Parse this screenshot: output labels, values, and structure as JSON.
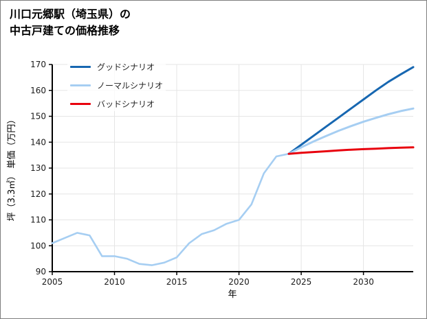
{
  "title": {
    "line1": "川口元郷駅（埼玉県）の",
    "line2": "中古戸建ての価格推移"
  },
  "chart_data": {
    "type": "line",
    "title": "川口元郷駅（埼玉県）の中古戸建ての価格推移",
    "xlabel": "年",
    "ylabel": "坪（3.3㎡） 単価（万円）",
    "xlim": [
      2005,
      2034
    ],
    "ylim": [
      90,
      170
    ],
    "xticks": [
      2005,
      2010,
      2015,
      2020,
      2025,
      2030
    ],
    "yticks": [
      90,
      100,
      110,
      120,
      130,
      140,
      150,
      160,
      170
    ],
    "grid": true,
    "legend_position": "top-left",
    "historical": {
      "color": "#a6cef2",
      "x": [
        2005,
        2006,
        2007,
        2008,
        2009,
        2010,
        2011,
        2012,
        2013,
        2014,
        2015,
        2016,
        2017,
        2018,
        2019,
        2020,
        2021,
        2022,
        2023,
        2024
      ],
      "y": [
        101,
        103,
        105,
        104,
        96,
        96,
        95,
        93,
        92.5,
        93.5,
        95.5,
        101,
        104.5,
        106,
        108.5,
        110,
        116,
        128,
        134.5,
        135.5
      ]
    },
    "series": [
      {
        "name": "グッドシナリオ",
        "color": "#1767b1",
        "x": [
          2024,
          2025,
          2026,
          2027,
          2028,
          2029,
          2030,
          2031,
          2032,
          2033,
          2034
        ],
        "y": [
          135.5,
          139,
          142.5,
          146,
          149.5,
          153,
          156.5,
          160,
          163.3,
          166.2,
          169
        ]
      },
      {
        "name": "ノーマルシナリオ",
        "color": "#a6cef2",
        "x": [
          2024,
          2025,
          2026,
          2027,
          2028,
          2029,
          2030,
          2031,
          2032,
          2033,
          2034
        ],
        "y": [
          135.5,
          138,
          140.3,
          142.4,
          144.4,
          146.2,
          147.9,
          149.4,
          150.8,
          152,
          153
        ]
      },
      {
        "name": "バッドシナリオ",
        "color": "#e8000d",
        "x": [
          2024,
          2025,
          2026,
          2027,
          2028,
          2029,
          2030,
          2031,
          2032,
          2033,
          2034
        ],
        "y": [
          135.5,
          135.9,
          136.2,
          136.5,
          136.8,
          137.1,
          137.3,
          137.5,
          137.7,
          137.9,
          138
        ]
      }
    ]
  }
}
